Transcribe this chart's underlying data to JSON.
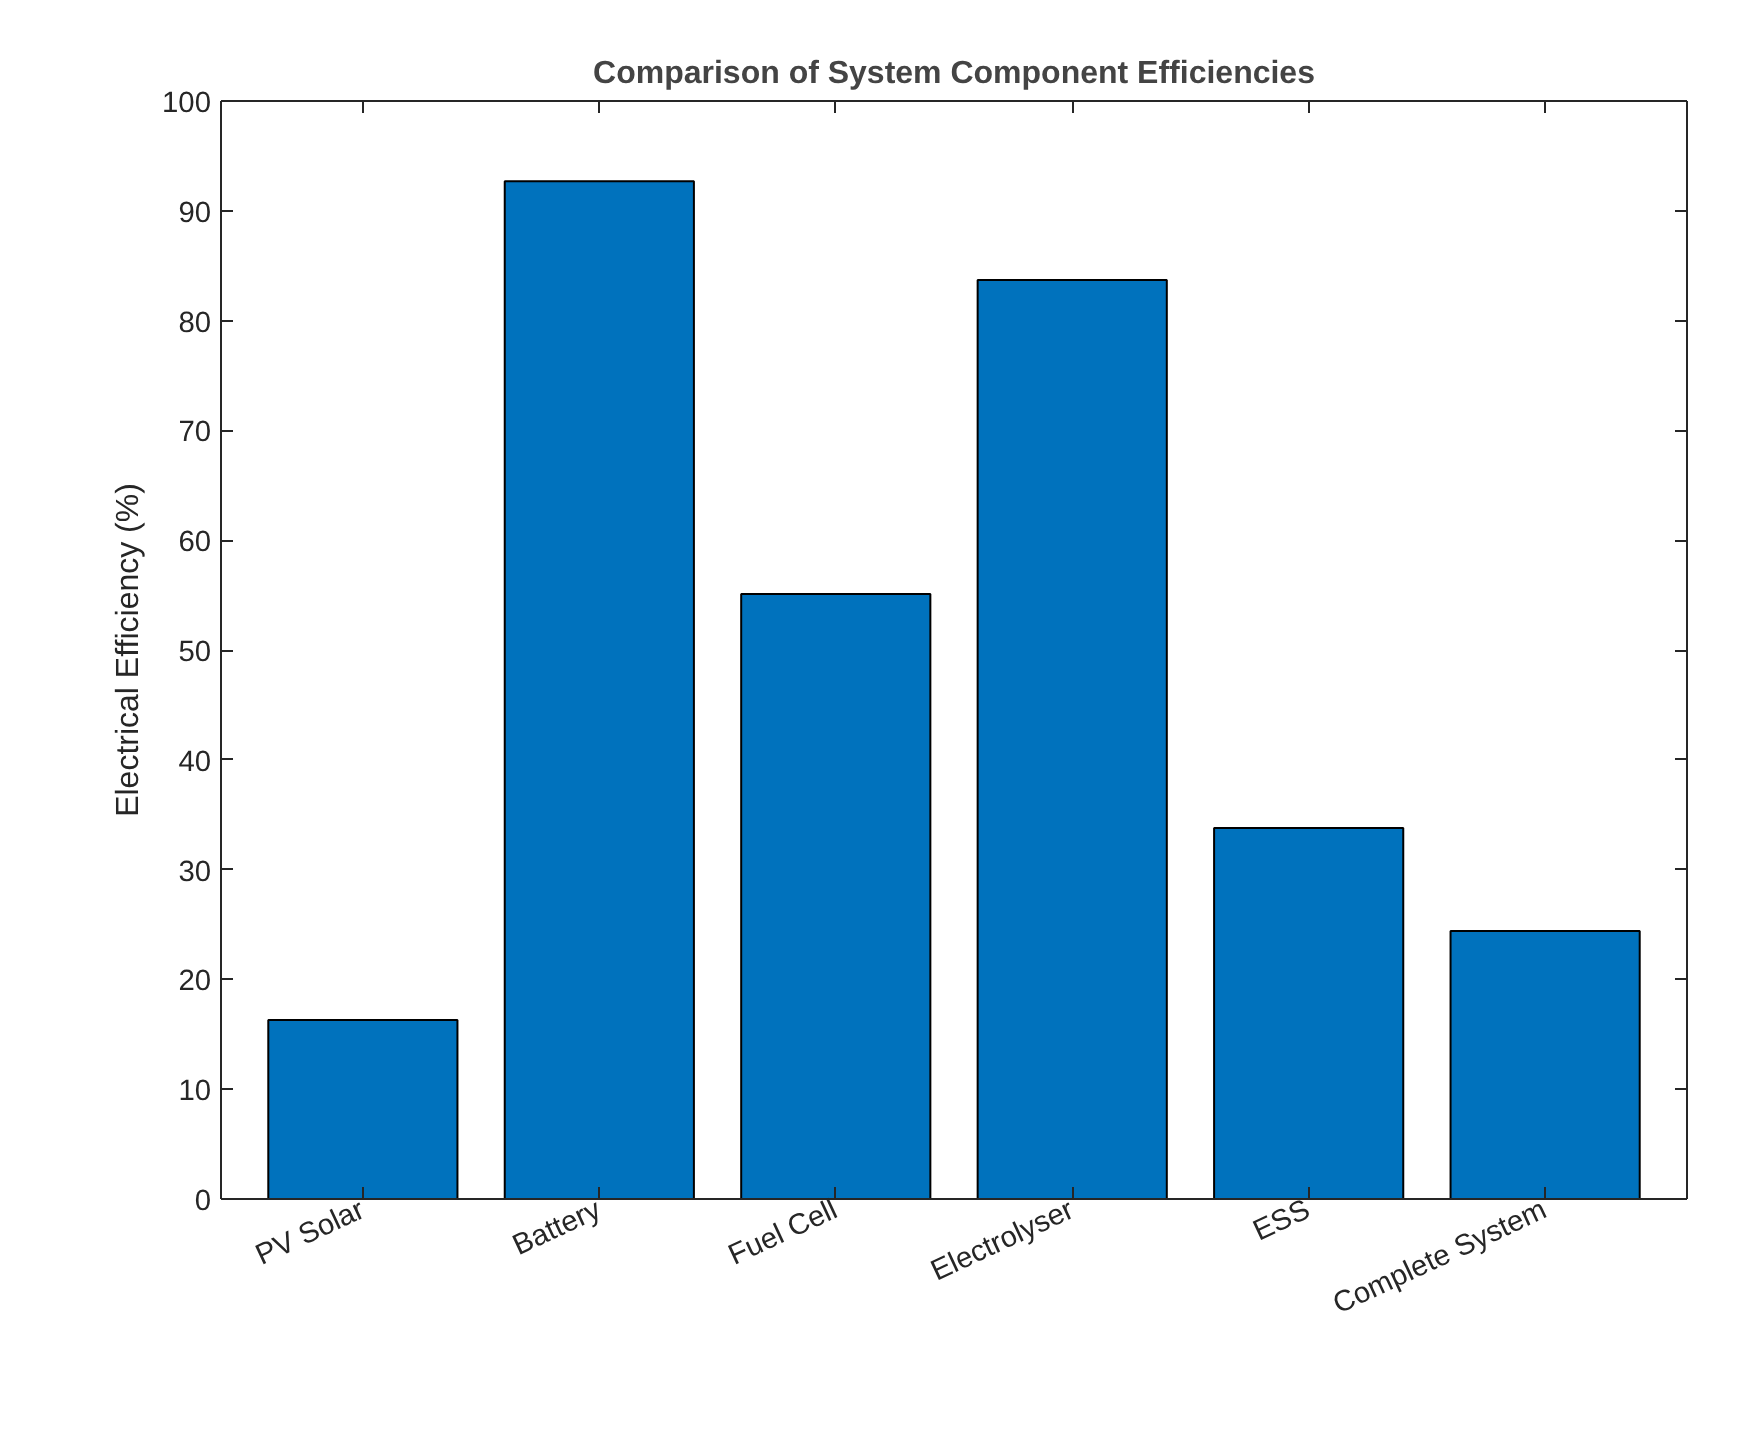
{
  "chart_data": {
    "type": "bar",
    "title": "Comparison of System Component Efficiencies",
    "ylabel": "Electrical Efficiency (%)",
    "categories": [
      "PV Solar",
      "Battery",
      "Fuel Cell",
      "Electrolyser",
      "ESS",
      "Complete System"
    ],
    "values": [
      16.3,
      92.7,
      55.1,
      83.7,
      33.8,
      24.4
    ],
    "color": "#0072bd",
    "ylim": [
      0,
      100
    ],
    "yticks": [
      0,
      10,
      20,
      30,
      40,
      50,
      60,
      70,
      80,
      90,
      100
    ],
    "grid": false
  }
}
